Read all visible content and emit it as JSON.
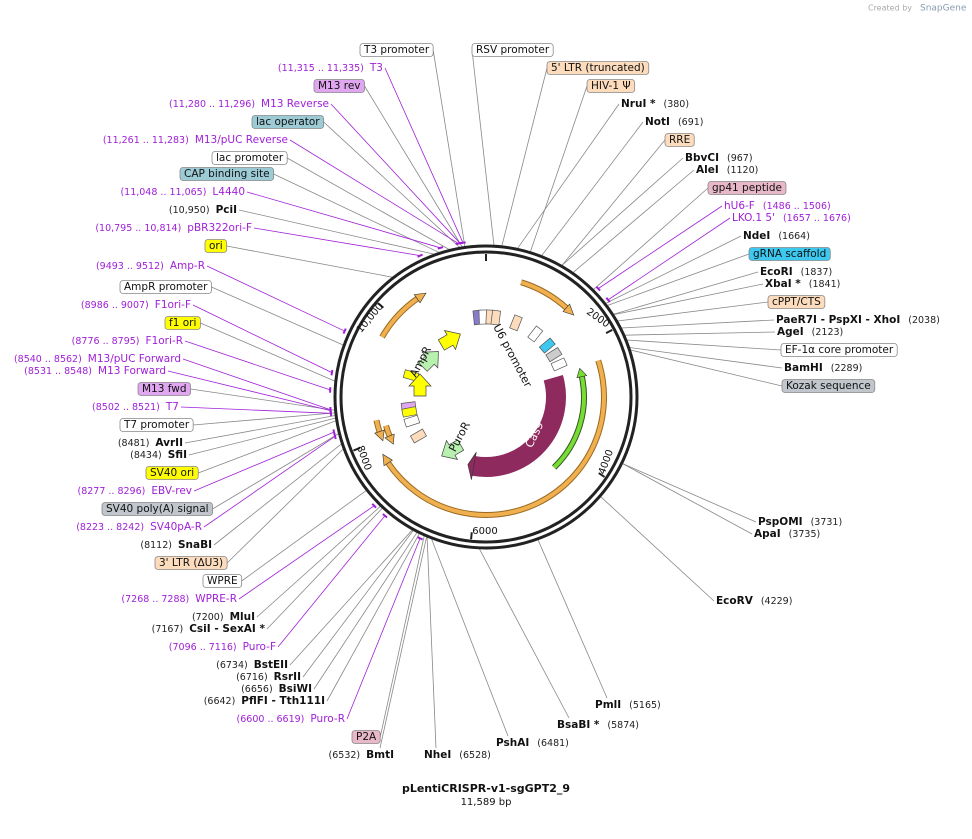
{
  "credit": {
    "prefix": "Created by",
    "brand": "SnapGene"
  },
  "map": {
    "name": "pLentiCRISPR-v1-sgGPT2_9",
    "length": "11,589 bp",
    "ring_ticks": [
      "2000",
      "4000",
      "6000",
      "8000",
      "10,000"
    ],
    "inner_features": [
      "AmpR",
      "U6 promoter",
      "PuroR",
      "Cas9"
    ]
  },
  "features": [
    {
      "text": "T3 promoter",
      "color": "#ffffff"
    },
    {
      "text": "RSV promoter",
      "color": "#ffffff"
    },
    {
      "text": "5' LTR (truncated)",
      "color": "#fcdcbc"
    },
    {
      "text": "M13 rev",
      "color": "#e0a6ef"
    },
    {
      "text": "HIV-1 Ψ",
      "color": "#fcdcbc"
    },
    {
      "text": "lac operator",
      "color": "#9ccbd6"
    },
    {
      "text": "RRE",
      "color": "#fcdcbc"
    },
    {
      "text": "lac promoter",
      "color": "#ffffff"
    },
    {
      "text": "CAP binding site",
      "color": "#9ccbd6"
    },
    {
      "text": "gp41 peptide",
      "color": "#e8b8c8"
    },
    {
      "text": "ori",
      "color": "#ffff00"
    },
    {
      "text": "gRNA scaffold",
      "color": "#3dc8f0"
    },
    {
      "text": "AmpR promoter",
      "color": "#ffffff"
    },
    {
      "text": "cPPT/CTS",
      "color": "#fcdcbc"
    },
    {
      "text": "f1 ori",
      "color": "#ffff00"
    },
    {
      "text": "EF-1α core promoter",
      "color": "#ffffff"
    },
    {
      "text": "M13 fwd",
      "color": "#e0a6ef"
    },
    {
      "text": "Kozak sequence",
      "color": "#c0c6cc"
    },
    {
      "text": "T7 promoter",
      "color": "#ffffff"
    },
    {
      "text": "SV40 ori",
      "color": "#ffff00"
    },
    {
      "text": "SV40 poly(A) signal",
      "color": "#c0c6cc"
    },
    {
      "text": "3' LTR (ΔU3)",
      "color": "#fcdcbc"
    },
    {
      "text": "WPRE",
      "color": "#ffffff"
    },
    {
      "text": "P2A",
      "color": "#e8b8c8"
    }
  ],
  "enzymes": [
    {
      "name": "NruI *",
      "pos": "(380)"
    },
    {
      "name": "NotI",
      "pos": "(691)"
    },
    {
      "name": "BbvCI",
      "pos": "(967)"
    },
    {
      "name": "AleI",
      "pos": "(1120)"
    },
    {
      "name": "PciI",
      "pos": "(10,950)"
    },
    {
      "name": "NdeI",
      "pos": "(1664)"
    },
    {
      "name": "EcoRI",
      "pos": "(1837)"
    },
    {
      "name": "XbaI *",
      "pos": "(1841)"
    },
    {
      "name": "PaeR7I - PspXI - XhoI",
      "pos": "(2038)"
    },
    {
      "name": "AgeI",
      "pos": "(2123)"
    },
    {
      "name": "BamHI",
      "pos": "(2289)"
    },
    {
      "name": "AvrII",
      "pos": "(8481)"
    },
    {
      "name": "SfiI",
      "pos": "(8434)"
    },
    {
      "name": "SnaBI",
      "pos": "(8112)"
    },
    {
      "name": "MluI",
      "pos": "(7200)"
    },
    {
      "name": "CsiI - SexAI *",
      "pos": "(7167)"
    },
    {
      "name": "BstEII",
      "pos": "(6734)"
    },
    {
      "name": "RsrII",
      "pos": "(6716)"
    },
    {
      "name": "BsiWI",
      "pos": "(6656)"
    },
    {
      "name": "PflFI - Tth111I",
      "pos": "(6642)"
    },
    {
      "name": "BmtI",
      "pos": "(6532)"
    },
    {
      "name": "NheI",
      "pos": "(6528)"
    },
    {
      "name": "PshAI",
      "pos": "(6481)"
    },
    {
      "name": "BsaBI *",
      "pos": "(5874)"
    },
    {
      "name": "PmlI",
      "pos": "(5165)"
    },
    {
      "name": "EcoRV",
      "pos": "(4229)"
    },
    {
      "name": "PspOMI",
      "pos": "(3731)"
    },
    {
      "name": "ApaI",
      "pos": "(3735)"
    }
  ],
  "primers": [
    {
      "name": "T3",
      "pos": "(11,315 .. 11,335)"
    },
    {
      "name": "M13 Reverse",
      "pos": "(11,280 .. 11,296)"
    },
    {
      "name": "M13/pUC Reverse",
      "pos": "(11,261 .. 11,283)"
    },
    {
      "name": "L4440",
      "pos": "(11,048 .. 11,065)"
    },
    {
      "name": "pBR322ori-F",
      "pos": "(10,795 .. 10,814)"
    },
    {
      "name": "hU6-F",
      "pos": "(1486 .. 1506)"
    },
    {
      "name": "LKO.1 5'",
      "pos": "(1657 .. 1676)"
    },
    {
      "name": "Amp-R",
      "pos": "(9493 .. 9512)"
    },
    {
      "name": "F1ori-F",
      "pos": "(8986 .. 9007)"
    },
    {
      "name": "F1ori-R",
      "pos": "(8776 .. 8795)"
    },
    {
      "name": "M13/pUC Forward",
      "pos": "(8540 .. 8562)"
    },
    {
      "name": "M13 Forward",
      "pos": "(8531 .. 8548)"
    },
    {
      "name": "T7",
      "pos": "(8502 .. 8521)"
    },
    {
      "name": "EBV-rev",
      "pos": "(8277 .. 8296)"
    },
    {
      "name": "SV40pA-R",
      "pos": "(8223 .. 8242)"
    },
    {
      "name": "WPRE-R",
      "pos": "(7268 .. 7288)"
    },
    {
      "name": "Puro-F",
      "pos": "(7096 .. 7116)"
    },
    {
      "name": "Puro-R",
      "pos": "(6600 .. 6619)"
    }
  ]
}
